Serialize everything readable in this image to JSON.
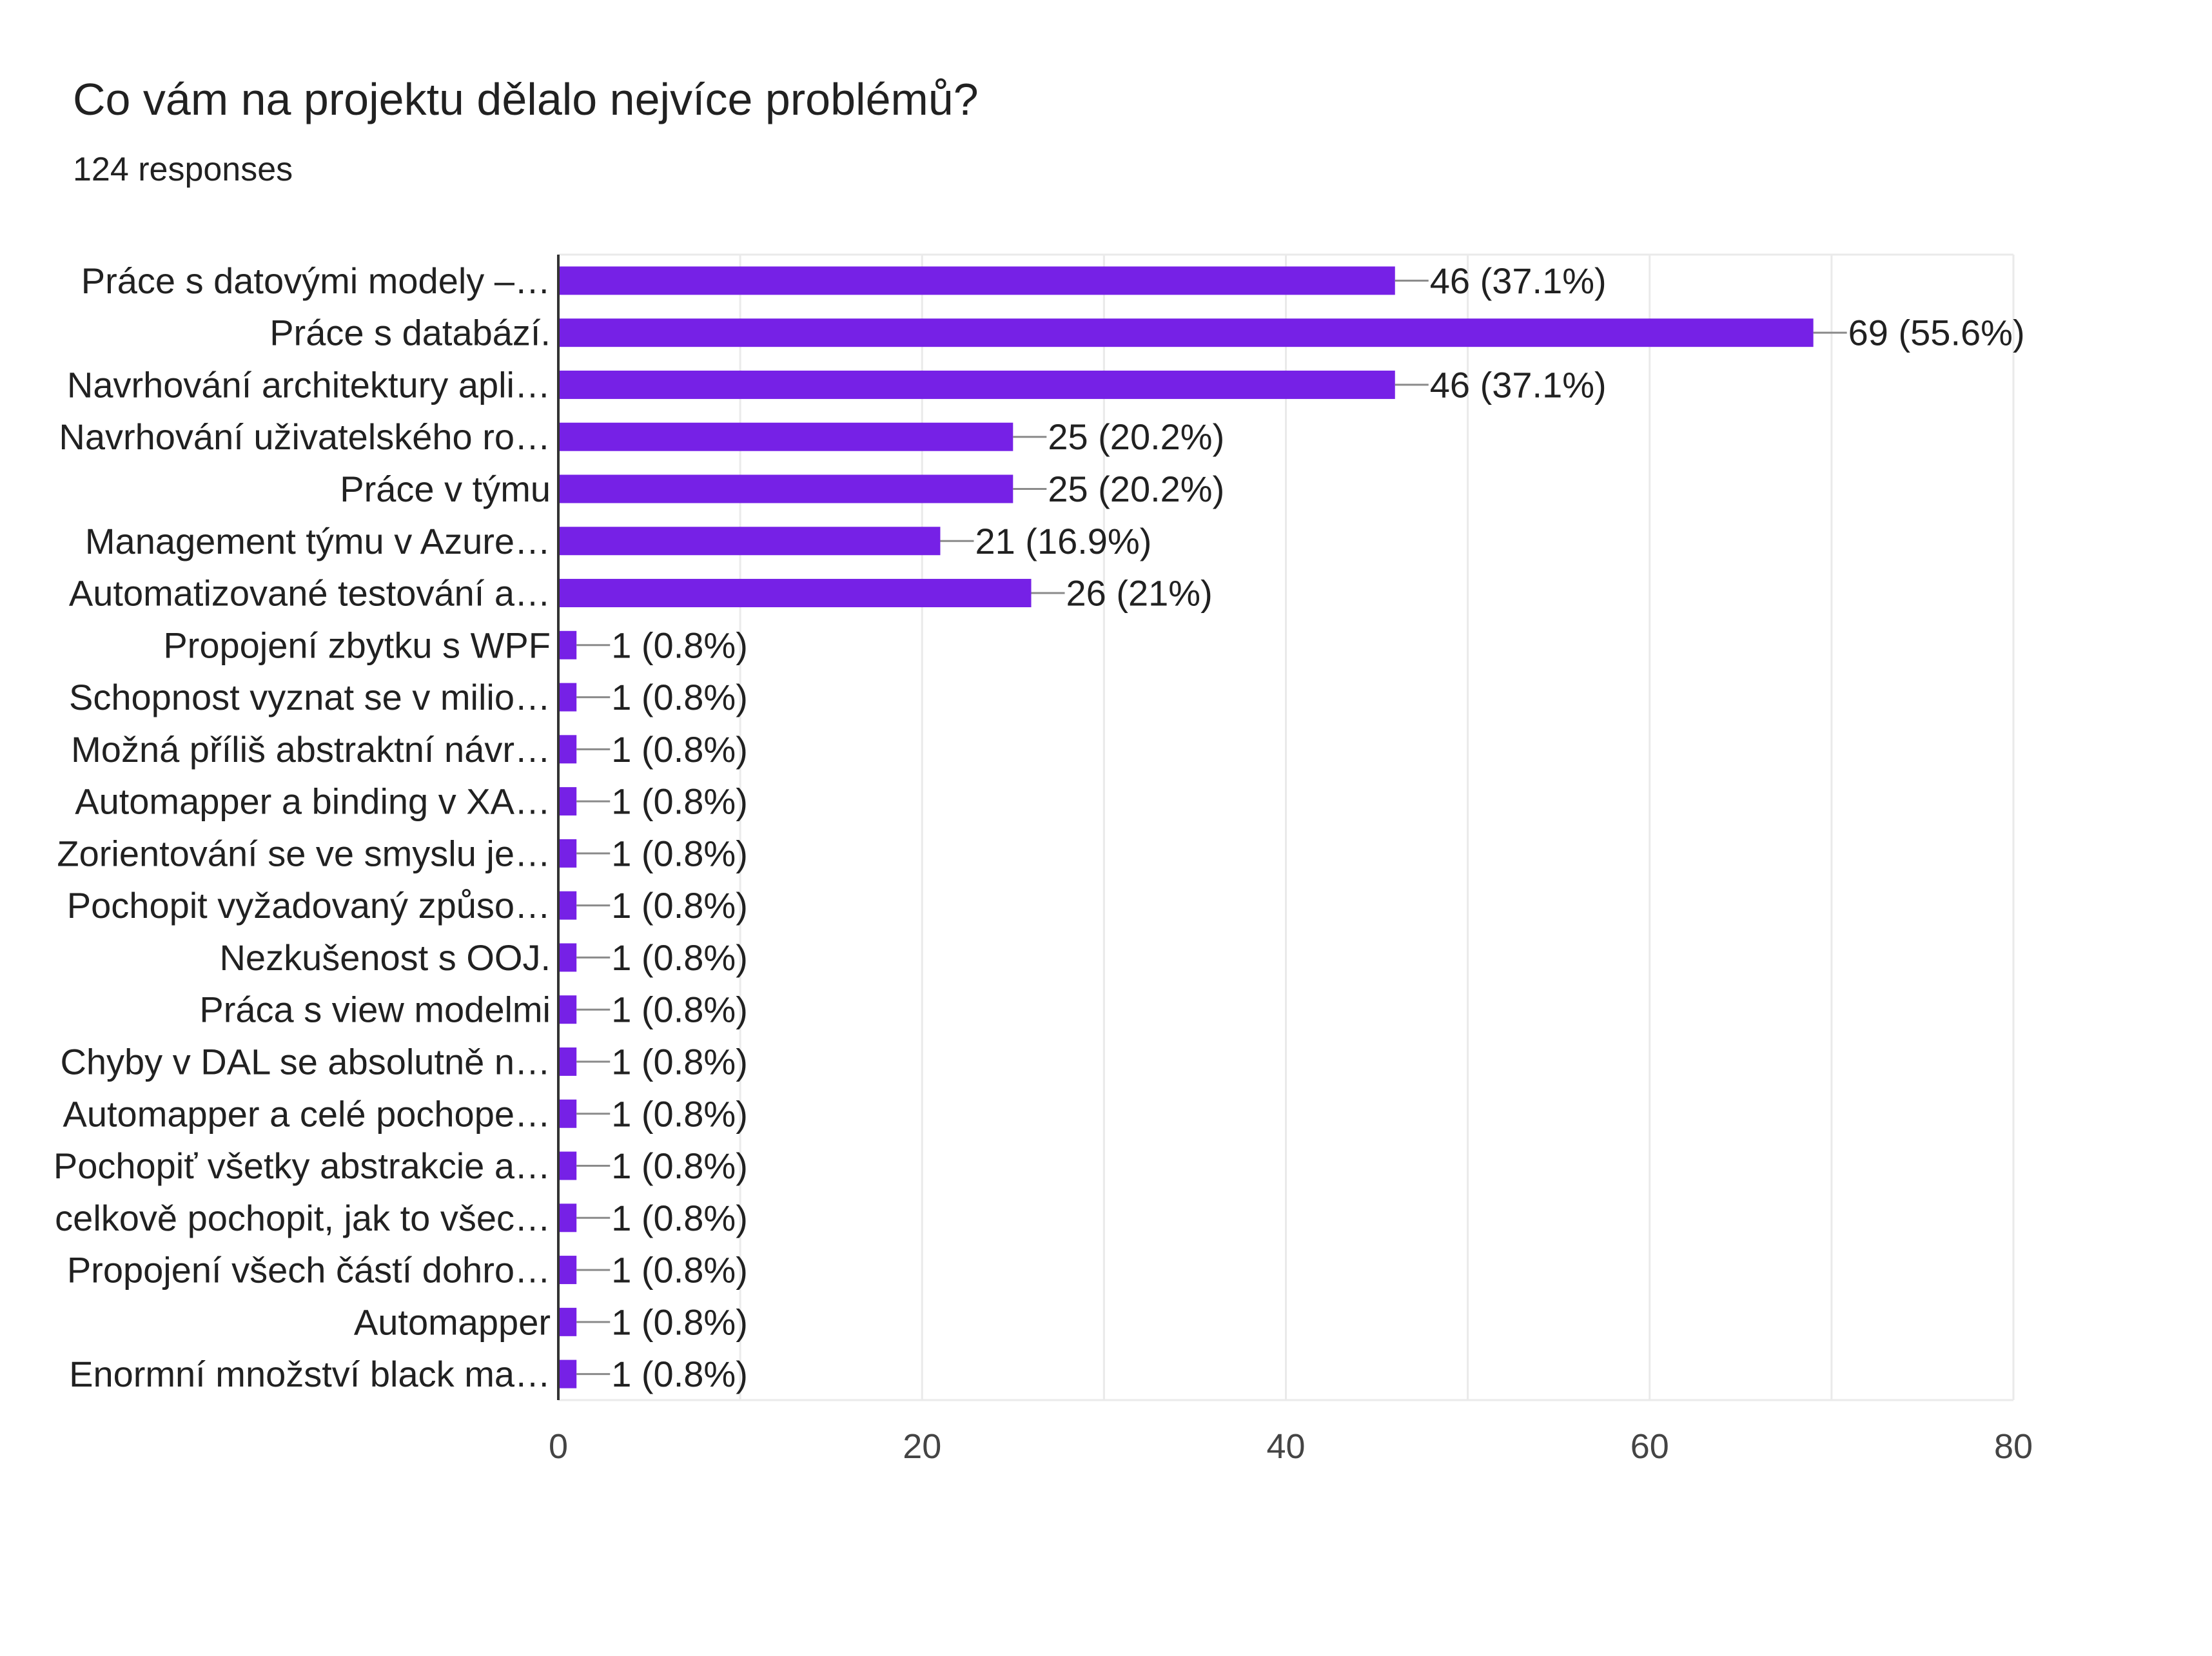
{
  "title": "Co vám na projektu dělalo nejvíce problémů?",
  "subtitle": "124 responses",
  "chart_data": {
    "type": "bar",
    "orientation": "horizontal",
    "title": "Co vám na projektu dělalo nejvíce problémů?",
    "subtitle": "124 responses",
    "xlabel": "",
    "ylabel": "",
    "xlim": [
      0,
      80
    ],
    "x_ticks": [
      "0",
      "20",
      "40",
      "60",
      "80"
    ],
    "grid": true,
    "bar_color": "#7621e6",
    "categories": [
      "Práce s datovými modely –…",
      "Práce s databází.",
      "Navrhování architektury apli…",
      "Navrhování uživatelského ro…",
      "Práce v týmu",
      "Management týmu v Azure…",
      "Automatizované testování a…",
      "Propojení zbytku s WPF",
      "Schopnost vyznat se v milio…",
      "Možná příliš abstraktní návr…",
      "Automapper a binding v XA…",
      "Zorientování se ve smyslu je…",
      "Pochopit vyžadovaný způso…",
      "Nezkušenost s OOJ.",
      "Práca s view modelmi",
      "Chyby v DAL se absolutně n…",
      "Automapper a celé pochope…",
      "Pochopiť všetky abstrakcie a…",
      "celkově pochopit, jak to všec…",
      "Propojení všech částí dohro…",
      "Automapper",
      "Enormní množství black ma…"
    ],
    "values": [
      46,
      69,
      46,
      25,
      25,
      21,
      26,
      1,
      1,
      1,
      1,
      1,
      1,
      1,
      1,
      1,
      1,
      1,
      1,
      1,
      1,
      1
    ],
    "data_labels": [
      "46 (37.1%)",
      "69 (55.6%)",
      "46 (37.1%)",
      "25 (20.2%)",
      "25 (20.2%)",
      "21 (16.9%)",
      "26 (21%)",
      "1 (0.8%)",
      "1 (0.8%)",
      "1 (0.8%)",
      "1 (0.8%)",
      "1 (0.8%)",
      "1 (0.8%)",
      "1 (0.8%)",
      "1 (0.8%)",
      "1 (0.8%)",
      "1 (0.8%)",
      "1 (0.8%)",
      "1 (0.8%)",
      "1 (0.8%)",
      "1 (0.8%)",
      "1 (0.8%)"
    ]
  }
}
